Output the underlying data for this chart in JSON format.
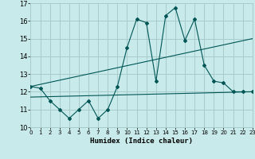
{
  "title": "",
  "xlabel": "Humidex (Indice chaleur)",
  "bg_color": "#c8eaea",
  "grid_color": "#a8cccc",
  "line_color": "#005555",
  "xlim": [
    0,
    23
  ],
  "ylim": [
    10,
    17
  ],
  "yticks": [
    10,
    11,
    12,
    13,
    14,
    15,
    16,
    17
  ],
  "xticks": [
    0,
    1,
    2,
    3,
    4,
    5,
    6,
    7,
    8,
    9,
    10,
    11,
    12,
    13,
    14,
    15,
    16,
    17,
    18,
    19,
    20,
    21,
    22,
    23
  ],
  "main_x": [
    0,
    1,
    2,
    3,
    4,
    5,
    6,
    7,
    8,
    9,
    10,
    11,
    12,
    13,
    14,
    15,
    16,
    17,
    18,
    19,
    20,
    21,
    22,
    23
  ],
  "main_y": [
    12.3,
    12.2,
    11.5,
    11.0,
    10.5,
    11.0,
    11.5,
    10.5,
    11.0,
    12.3,
    14.5,
    16.1,
    15.9,
    12.6,
    16.3,
    16.75,
    14.9,
    16.1,
    13.5,
    12.6,
    12.5,
    12.0,
    12.0,
    12.0
  ],
  "upper_trend_x": [
    0,
    23
  ],
  "upper_trend_y": [
    12.3,
    15.0
  ],
  "lower_trend_x": [
    0,
    23
  ],
  "lower_trend_y": [
    11.7,
    12.0
  ]
}
